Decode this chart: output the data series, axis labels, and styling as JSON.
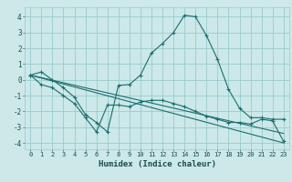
{
  "title": "",
  "xlabel": "Humidex (Indice chaleur)",
  "bg_color": "#cce8e8",
  "grid_color": "#99cccc",
  "line_color": "#1a6e6e",
  "xlim": [
    -0.5,
    23.5
  ],
  "ylim": [
    -4.4,
    4.6
  ],
  "xticks": [
    0,
    1,
    2,
    3,
    4,
    5,
    6,
    7,
    8,
    9,
    10,
    11,
    12,
    13,
    14,
    15,
    16,
    17,
    18,
    19,
    20,
    21,
    22,
    23
  ],
  "yticks": [
    -4,
    -3,
    -2,
    -1,
    0,
    1,
    2,
    3,
    4
  ],
  "curve1_x": [
    0,
    1,
    2,
    3,
    4,
    5,
    6,
    7,
    8,
    9,
    10,
    11,
    12,
    13,
    14,
    15,
    16,
    17,
    18,
    19,
    20,
    21,
    22,
    23
  ],
  "curve1_y": [
    0.3,
    0.5,
    0.0,
    -0.5,
    -1.1,
    -2.2,
    -2.7,
    -3.3,
    -0.35,
    -0.3,
    0.3,
    1.7,
    2.3,
    3.0,
    4.1,
    4.0,
    2.8,
    1.3,
    -0.6,
    -1.8,
    -2.4,
    -2.4,
    -2.5,
    -2.5
  ],
  "curve2_x": [
    0,
    1,
    2,
    3,
    4,
    5,
    6,
    7,
    8,
    9,
    10,
    11,
    12,
    13,
    14,
    15,
    16,
    17,
    18,
    19,
    20,
    21,
    22,
    23
  ],
  "curve2_y": [
    0.3,
    -0.3,
    -0.5,
    -1.0,
    -1.5,
    -2.4,
    -3.3,
    -1.6,
    -1.6,
    -1.7,
    -1.4,
    -1.3,
    -1.3,
    -1.5,
    -1.7,
    -2.0,
    -2.3,
    -2.5,
    -2.7,
    -2.7,
    -2.8,
    -2.5,
    -2.6,
    -3.9
  ],
  "curve3_x": [
    0,
    23
  ],
  "curve3_y": [
    0.3,
    -4.0
  ],
  "curve4_x": [
    0,
    23
  ],
  "curve4_y": [
    0.3,
    -3.4
  ]
}
